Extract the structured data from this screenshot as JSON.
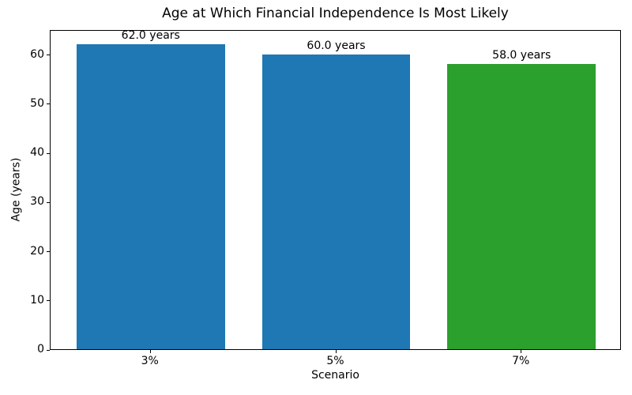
{
  "chart_data": {
    "type": "bar",
    "title": "Age at Which Financial Independence Is Most Likely",
    "xlabel": "Scenario",
    "ylabel": "Age (years)",
    "categories": [
      "3%",
      "5%",
      "7%"
    ],
    "values": [
      62.0,
      60.0,
      58.0
    ],
    "bar_labels": [
      "62.0 years",
      "60.0 years",
      "58.0 years"
    ],
    "bar_colors": [
      "#1f77b4",
      "#1f77b4",
      "#2ca02c"
    ],
    "ylim": [
      0,
      65.1
    ],
    "yticks": [
      0,
      10,
      20,
      30,
      40,
      50,
      60
    ],
    "bar_width": 0.8,
    "grid": false,
    "legend": null,
    "axis_color": "#000000",
    "background_color": "#ffffff"
  }
}
